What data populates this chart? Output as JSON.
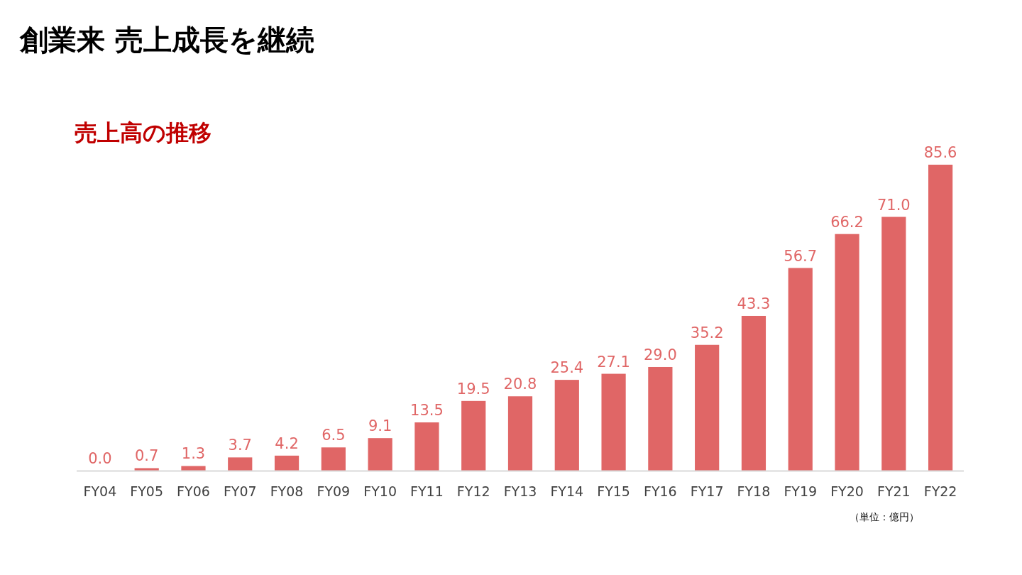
{
  "chart_data": {
    "type": "bar",
    "title": "創業来 売上成長を継続",
    "subtitle": "売上高の推移",
    "categories": [
      "FY04",
      "FY05",
      "FY06",
      "FY07",
      "FY08",
      "FY09",
      "FY10",
      "FY11",
      "FY12",
      "FY13",
      "FY14",
      "FY15",
      "FY16",
      "FY17",
      "FY18",
      "FY19",
      "FY20",
      "FY21",
      "FY22"
    ],
    "values": [
      0.0,
      0.7,
      1.3,
      3.7,
      4.2,
      6.5,
      9.1,
      13.5,
      19.5,
      20.8,
      25.4,
      27.1,
      29.0,
      35.2,
      43.3,
      56.7,
      66.2,
      71.0,
      85.6
    ],
    "value_labels": [
      "0.0",
      "0.7",
      "1.3",
      "3.7",
      "4.2",
      "6.5",
      "9.1",
      "13.5",
      "19.5",
      "20.8",
      "25.4",
      "27.1",
      "29.0",
      "35.2",
      "43.3",
      "56.7",
      "66.2",
      "71.0",
      "85.6"
    ],
    "color": "#e06666",
    "annotations": [
      "（単位：億円）"
    ]
  }
}
